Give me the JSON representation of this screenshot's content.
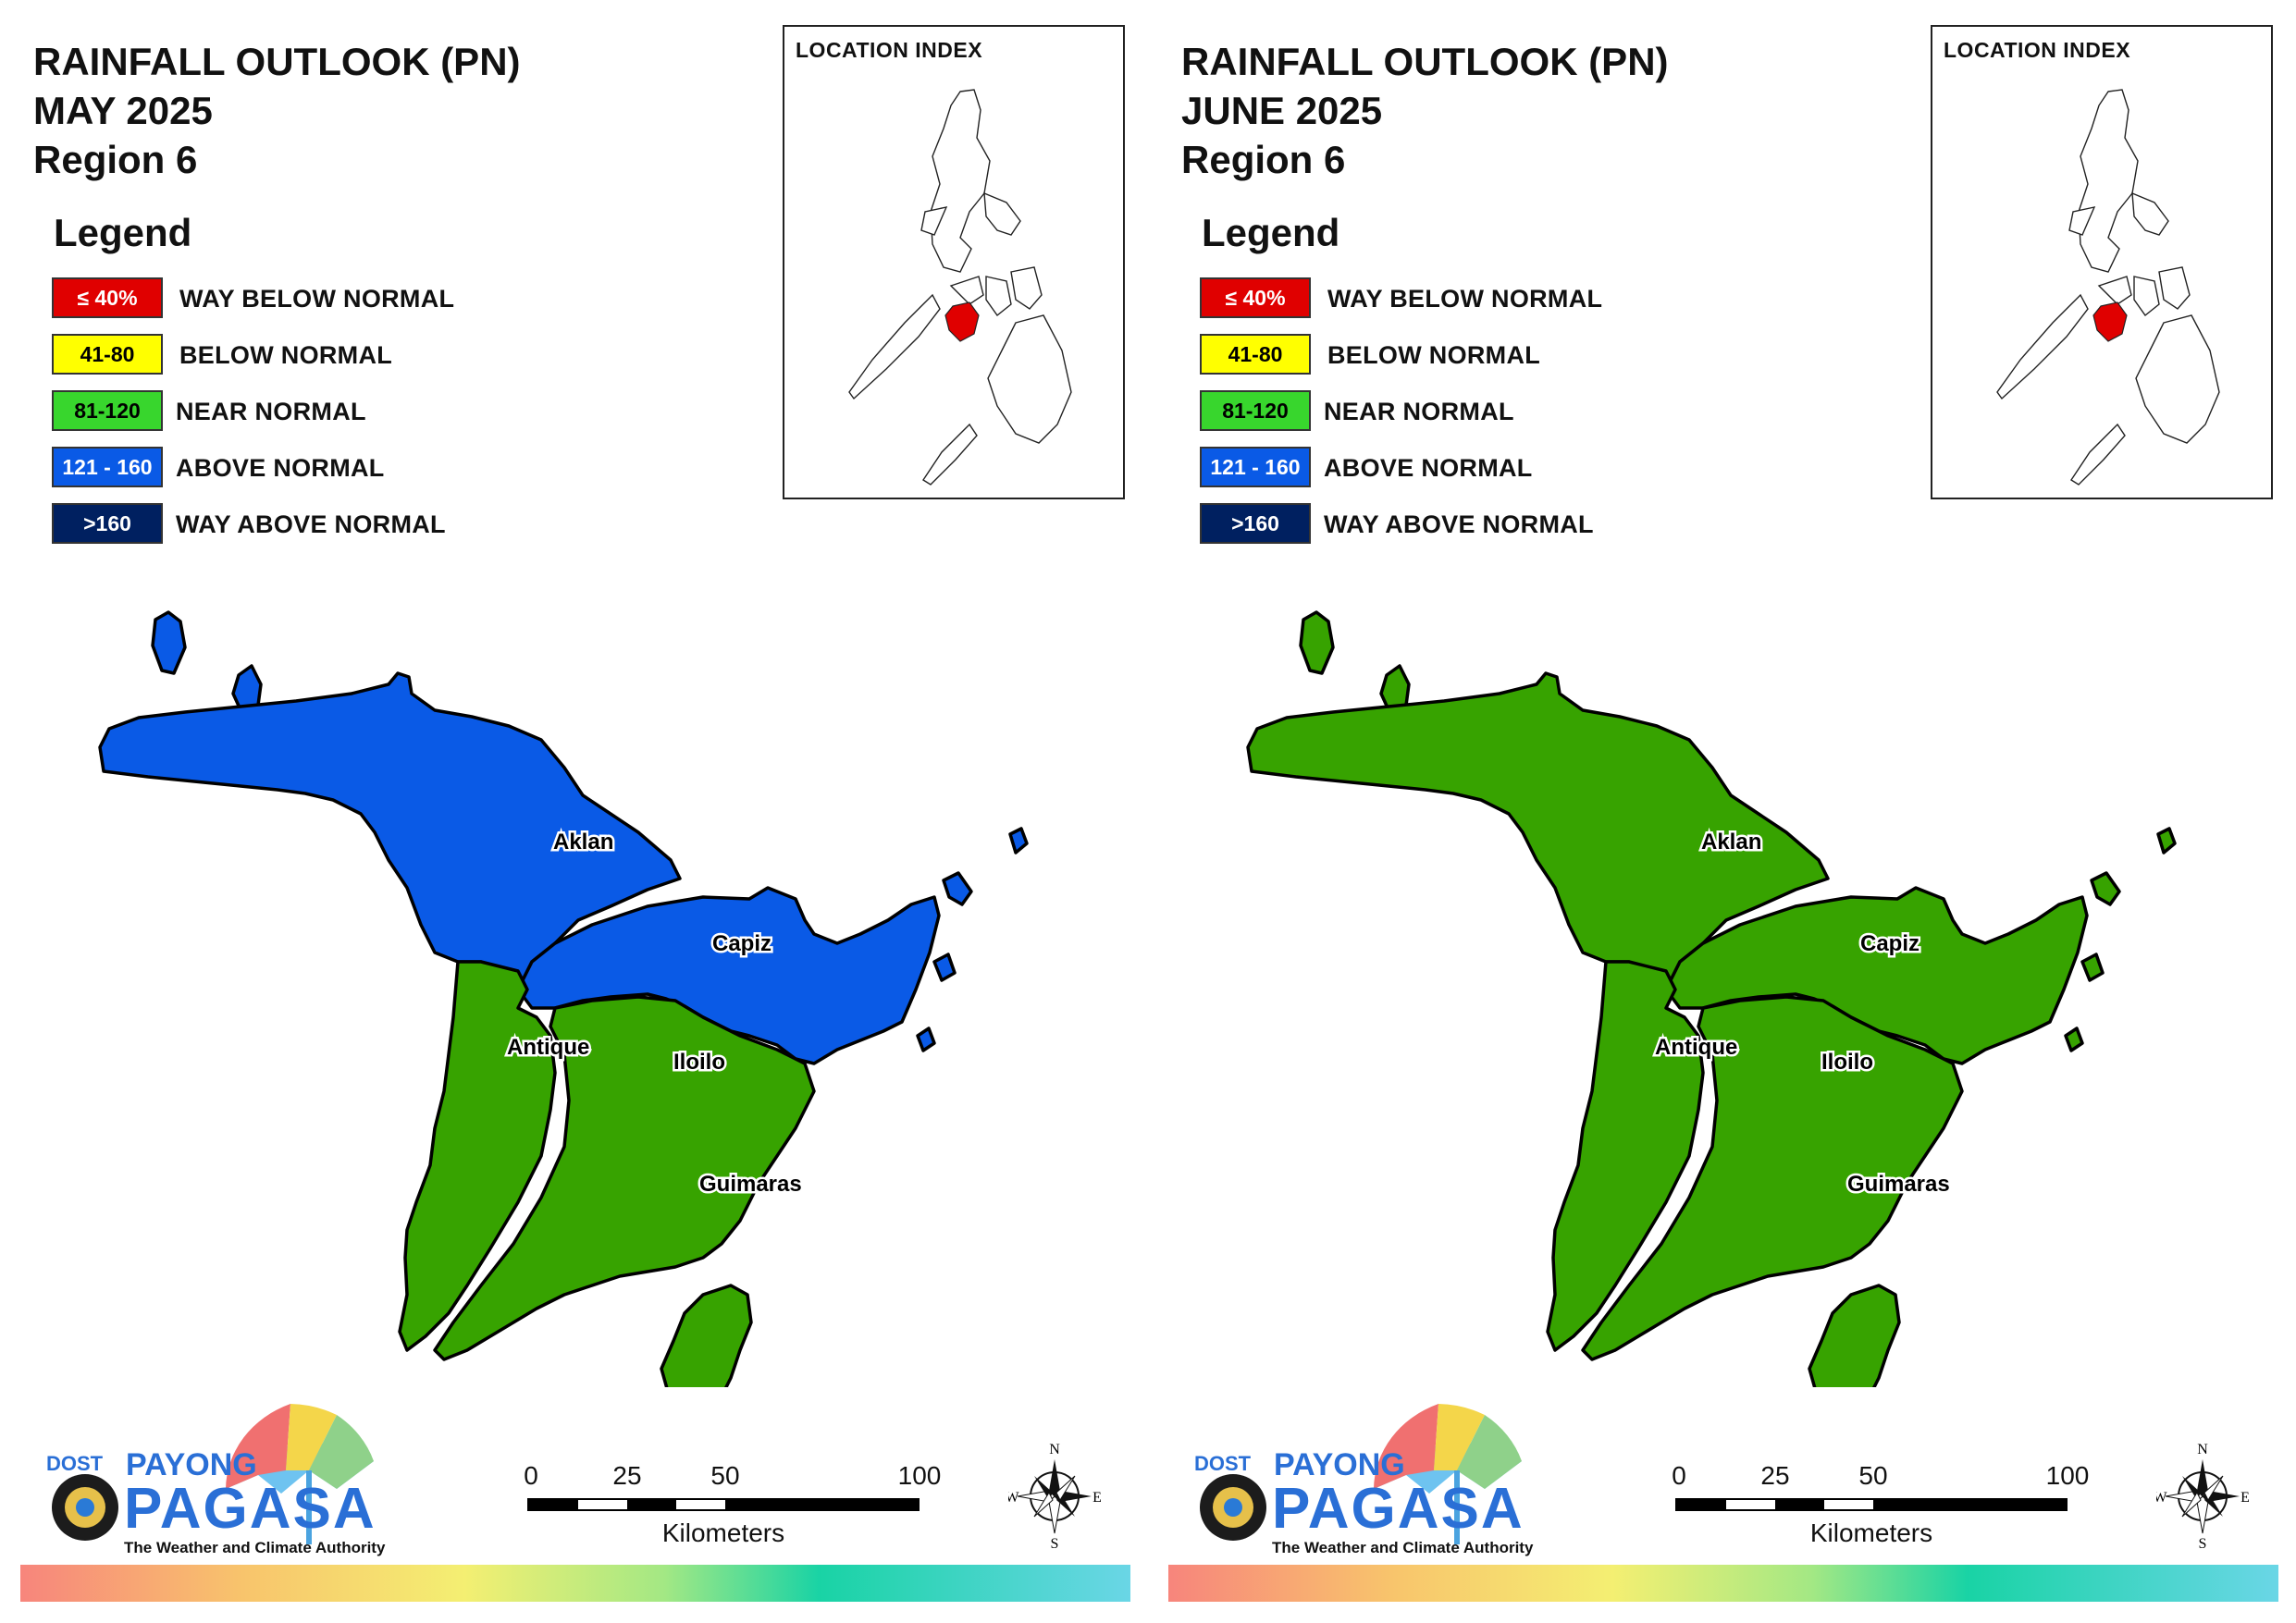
{
  "panels": [
    {
      "title_line1": "RAINFALL OUTLOOK (PN)",
      "title_line2": "MAY 2025",
      "title_line3": "Region 6",
      "legend_title": "Legend",
      "legend": [
        {
          "range": "≤ 40%",
          "label": "WAY BELOW NORMAL",
          "color": "#e00000",
          "text_color": "#ffffff"
        },
        {
          "range": "41-80",
          "label": "BELOW NORMAL",
          "color": "#ffff00",
          "text_color": "#000000"
        },
        {
          "range": "81-120",
          "label": "NEAR NORMAL",
          "color": "#38d62d",
          "text_color": "#000000"
        },
        {
          "range": "121 - 160",
          "label": "ABOVE NORMAL",
          "color": "#0a5ae6",
          "text_color": "#ffffff"
        },
        {
          "range": ">160",
          "label": "WAY ABOVE NORMAL",
          "color": "#002060",
          "text_color": "#ffffff"
        }
      ],
      "inset_label": "LOCATION INDEX",
      "provinces": [
        {
          "name": "Aklan",
          "category": "ABOVE NORMAL",
          "color": "#0a5ae6"
        },
        {
          "name": "Capiz",
          "category": "ABOVE NORMAL",
          "color": "#0a5ae6"
        },
        {
          "name": "Antique",
          "category": "NEAR NORMAL",
          "color": "#37a300"
        },
        {
          "name": "Iloilo",
          "category": "NEAR NORMAL",
          "color": "#37a300"
        },
        {
          "name": "Guimaras",
          "category": "NEAR NORMAL",
          "color": "#37a300"
        }
      ],
      "islands_color": "#0a5ae6",
      "scale_ticks": [
        "0",
        "25",
        "50",
        "100"
      ],
      "scale_unit": "Kilometers",
      "logo": {
        "dost": "DOST",
        "payong": "PAYONG",
        "pagasa": "PAGASA",
        "tagline": "The Weather and Climate Authority"
      },
      "compass": {
        "n": "N",
        "e": "E",
        "s": "S",
        "w": "W"
      }
    },
    {
      "title_line1": "RAINFALL OUTLOOK (PN)",
      "title_line2": "JUNE 2025",
      "title_line3": "Region 6",
      "legend_title": "Legend",
      "legend": [
        {
          "range": "≤ 40%",
          "label": "WAY BELOW NORMAL",
          "color": "#e00000",
          "text_color": "#ffffff"
        },
        {
          "range": "41-80",
          "label": "BELOW NORMAL",
          "color": "#ffff00",
          "text_color": "#000000"
        },
        {
          "range": "81-120",
          "label": "NEAR NORMAL",
          "color": "#38d62d",
          "text_color": "#000000"
        },
        {
          "range": "121 - 160",
          "label": "ABOVE NORMAL",
          "color": "#0a5ae6",
          "text_color": "#ffffff"
        },
        {
          "range": ">160",
          "label": "WAY ABOVE NORMAL",
          "color": "#002060",
          "text_color": "#ffffff"
        }
      ],
      "inset_label": "LOCATION INDEX",
      "provinces": [
        {
          "name": "Aklan",
          "category": "NEAR NORMAL",
          "color": "#37a300"
        },
        {
          "name": "Capiz",
          "category": "NEAR NORMAL",
          "color": "#37a300"
        },
        {
          "name": "Antique",
          "category": "NEAR NORMAL",
          "color": "#37a300"
        },
        {
          "name": "Iloilo",
          "category": "NEAR NORMAL",
          "color": "#37a300"
        },
        {
          "name": "Guimaras",
          "category": "NEAR NORMAL",
          "color": "#37a300"
        }
      ],
      "islands_color": "#37a300",
      "scale_ticks": [
        "0",
        "25",
        "50",
        "100"
      ],
      "scale_unit": "Kilometers",
      "logo": {
        "dost": "DOST",
        "payong": "PAYONG",
        "pagasa": "PAGASA",
        "tagline": "The Weather and Climate Authority"
      },
      "compass": {
        "n": "N",
        "e": "E",
        "s": "S",
        "w": "W"
      }
    }
  ],
  "colors": {
    "highlight_region": "#e00000",
    "boundary": "#000000"
  }
}
